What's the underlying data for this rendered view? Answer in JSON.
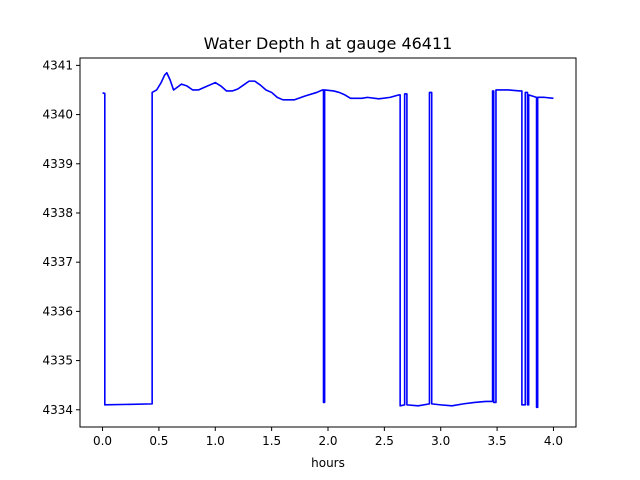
{
  "chart_data": {
    "type": "line",
    "title": "Water Depth h at gauge 46411",
    "xlabel": "hours",
    "ylabel": "",
    "xlim": [
      -0.2,
      4.2
    ],
    "ylim": [
      4333.65,
      4341.15
    ],
    "xticks": [
      0.0,
      0.5,
      1.0,
      1.5,
      2.0,
      2.5,
      3.0,
      3.5,
      4.0
    ],
    "xtick_labels": [
      "0.0",
      "0.5",
      "1.0",
      "1.5",
      "2.0",
      "2.5",
      "3.0",
      "3.5",
      "4.0"
    ],
    "yticks": [
      4334,
      4335,
      4336,
      4337,
      4338,
      4339,
      4340,
      4341
    ],
    "ytick_labels": [
      "4334",
      "4335",
      "4336",
      "4337",
      "4338",
      "4339",
      "4340",
      "4341"
    ],
    "grid": false,
    "series": [
      {
        "color": "#0000ff",
        "points": [
          [
            0.0,
            4340.44
          ],
          [
            0.02,
            4340.43
          ],
          [
            0.02,
            4334.1
          ],
          [
            0.44,
            4334.12
          ],
          [
            0.44,
            4340.45
          ],
          [
            0.48,
            4340.5
          ],
          [
            0.52,
            4340.65
          ],
          [
            0.55,
            4340.8
          ],
          [
            0.57,
            4340.85
          ],
          [
            0.6,
            4340.7
          ],
          [
            0.63,
            4340.5
          ],
          [
            0.66,
            4340.55
          ],
          [
            0.7,
            4340.62
          ],
          [
            0.75,
            4340.58
          ],
          [
            0.8,
            4340.5
          ],
          [
            0.85,
            4340.5
          ],
          [
            0.9,
            4340.55
          ],
          [
            0.95,
            4340.6
          ],
          [
            1.0,
            4340.65
          ],
          [
            1.05,
            4340.58
          ],
          [
            1.1,
            4340.48
          ],
          [
            1.15,
            4340.48
          ],
          [
            1.2,
            4340.52
          ],
          [
            1.25,
            4340.6
          ],
          [
            1.3,
            4340.68
          ],
          [
            1.35,
            4340.68
          ],
          [
            1.4,
            4340.6
          ],
          [
            1.45,
            4340.5
          ],
          [
            1.5,
            4340.45
          ],
          [
            1.55,
            4340.35
          ],
          [
            1.6,
            4340.3
          ],
          [
            1.7,
            4340.3
          ],
          [
            1.8,
            4340.38
          ],
          [
            1.9,
            4340.45
          ],
          [
            1.95,
            4340.5
          ],
          [
            1.96,
            4340.5
          ],
          [
            1.96,
            4334.15
          ],
          [
            1.97,
            4334.15
          ],
          [
            1.97,
            4340.5
          ],
          [
            2.05,
            4340.48
          ],
          [
            2.1,
            4340.45
          ],
          [
            2.15,
            4340.4
          ],
          [
            2.2,
            4340.33
          ],
          [
            2.3,
            4340.33
          ],
          [
            2.35,
            4340.35
          ],
          [
            2.45,
            4340.32
          ],
          [
            2.55,
            4340.35
          ],
          [
            2.63,
            4340.4
          ],
          [
            2.64,
            4340.4
          ],
          [
            2.64,
            4334.08
          ],
          [
            2.68,
            4334.1
          ],
          [
            2.68,
            4340.42
          ],
          [
            2.7,
            4340.42
          ],
          [
            2.7,
            4334.1
          ],
          [
            2.8,
            4334.08
          ],
          [
            2.9,
            4334.12
          ],
          [
            2.9,
            4340.45
          ],
          [
            2.92,
            4340.45
          ],
          [
            2.92,
            4334.12
          ],
          [
            3.0,
            4334.1
          ],
          [
            3.1,
            4334.08
          ],
          [
            3.2,
            4334.12
          ],
          [
            3.3,
            4334.15
          ],
          [
            3.4,
            4334.17
          ],
          [
            3.46,
            4334.17
          ],
          [
            3.46,
            4340.48
          ],
          [
            3.47,
            4340.48
          ],
          [
            3.47,
            4334.15
          ],
          [
            3.49,
            4334.15
          ],
          [
            3.49,
            4340.5
          ],
          [
            3.6,
            4340.5
          ],
          [
            3.7,
            4340.48
          ],
          [
            3.72,
            4340.48
          ],
          [
            3.72,
            4334.1
          ],
          [
            3.75,
            4334.1
          ],
          [
            3.75,
            4340.45
          ],
          [
            3.77,
            4340.45
          ],
          [
            3.77,
            4334.1
          ],
          [
            3.78,
            4334.1
          ],
          [
            3.78,
            4340.4
          ],
          [
            3.85,
            4340.35
          ],
          [
            3.85,
            4334.05
          ],
          [
            3.86,
            4334.05
          ],
          [
            3.86,
            4340.35
          ],
          [
            3.92,
            4340.35
          ],
          [
            4.0,
            4340.33
          ]
        ]
      }
    ]
  }
}
